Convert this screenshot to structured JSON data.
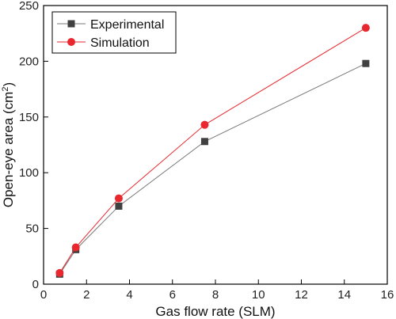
{
  "chart_data": {
    "type": "line",
    "xlabel": "Gas flow rate (SLM)",
    "ylabel_main": "Open-eye area (cm",
    "ylabel_sup": "2",
    "ylabel_close": ")",
    "xlim": [
      0,
      16
    ],
    "ylim": [
      0,
      250
    ],
    "xticks": [
      0,
      2,
      4,
      6,
      8,
      10,
      12,
      14,
      16
    ],
    "yticks": [
      0,
      50,
      100,
      150,
      200,
      250
    ],
    "grid": false,
    "legend_position": "top-left",
    "x": [
      0.75,
      1.5,
      3.5,
      7.5,
      15
    ],
    "series": [
      {
        "name": "Experimental",
        "marker": "square",
        "color": "#404040",
        "line_color": "#7a7a7a",
        "values": [
          9,
          31,
          70,
          128,
          198
        ]
      },
      {
        "name": "Simulation",
        "marker": "circle",
        "color": "#e8272f",
        "line_color": "#e8272f",
        "values": [
          10,
          33,
          77,
          143,
          230
        ]
      }
    ]
  }
}
